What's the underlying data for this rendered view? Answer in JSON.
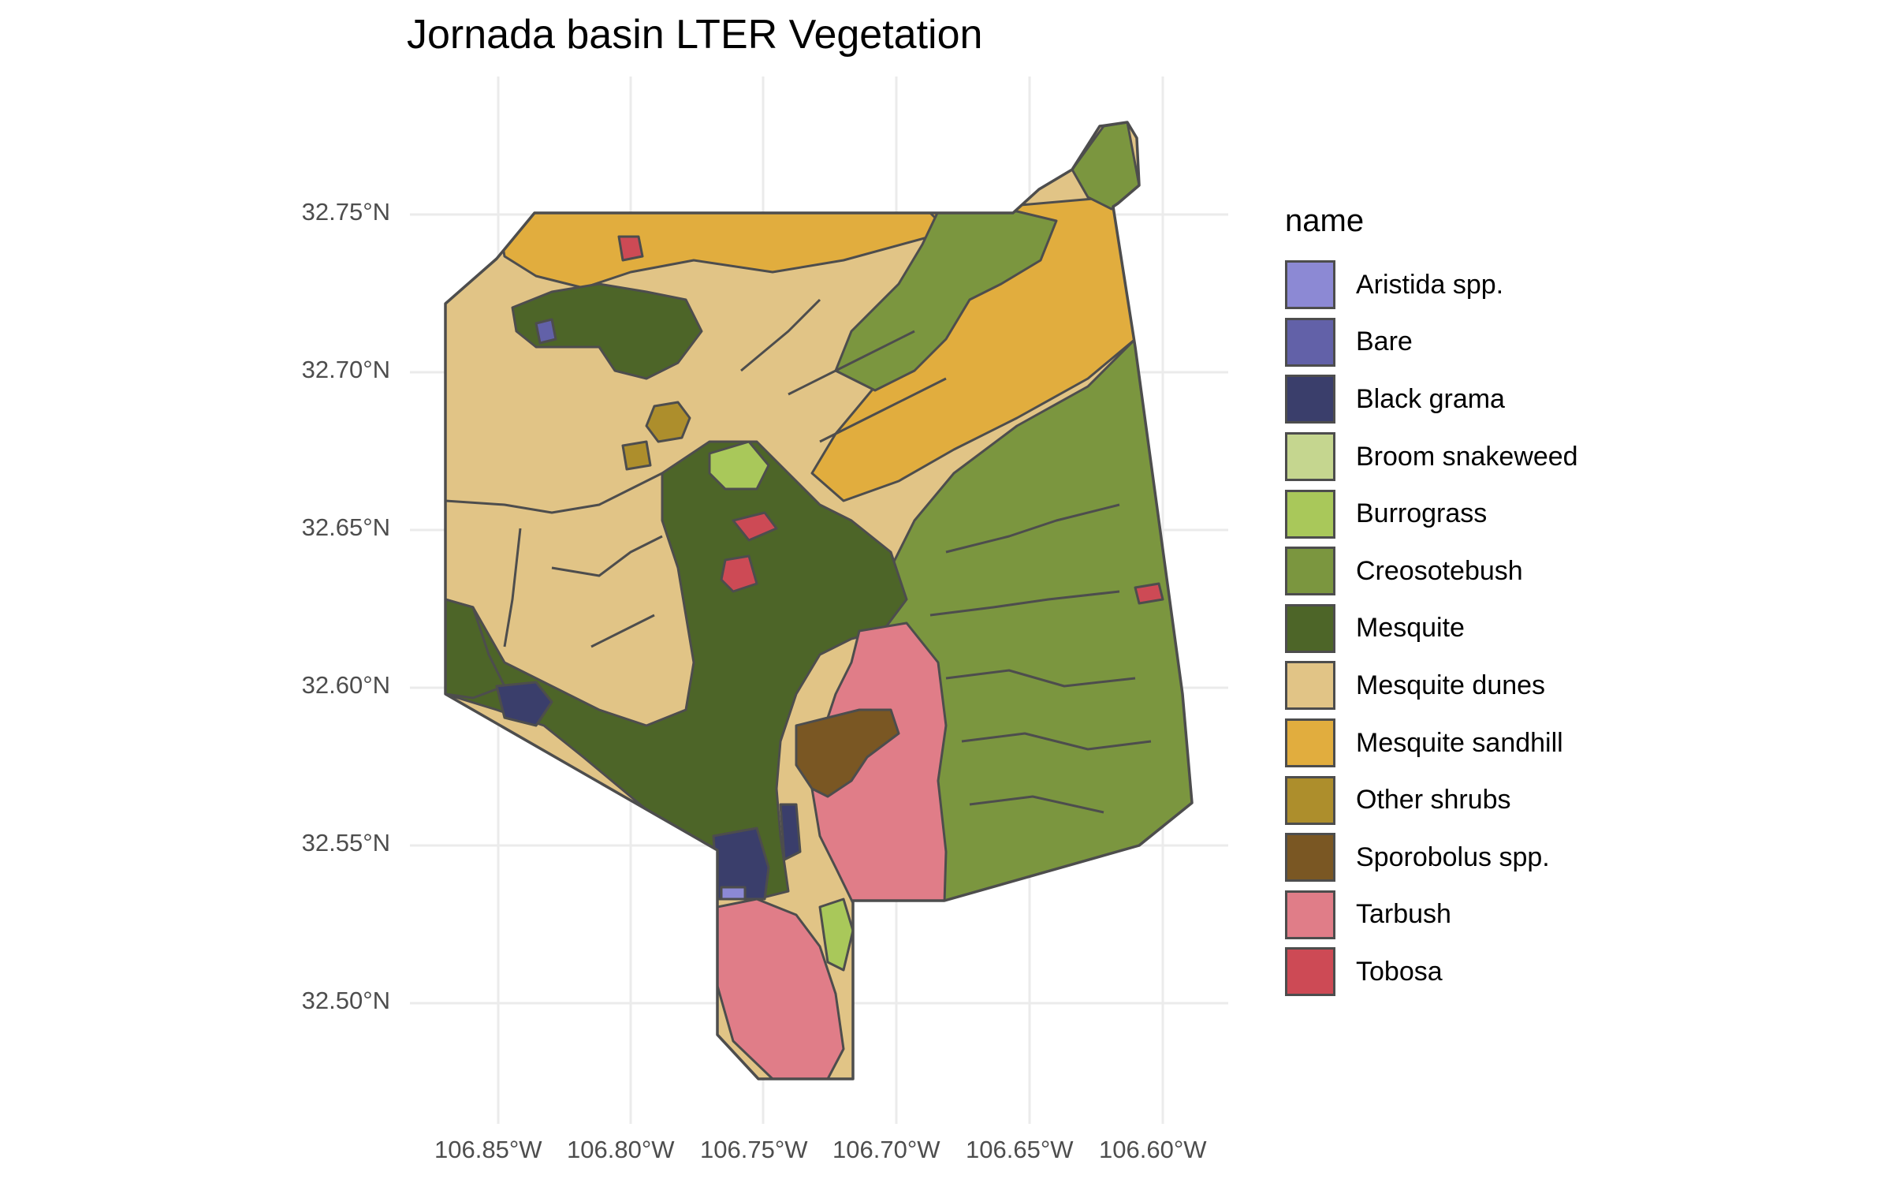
{
  "title": "Jornada basin LTER Vegetation",
  "axes": {
    "lat_ticks": [
      "32.75°N",
      "32.70°N",
      "32.65°N",
      "32.60°N",
      "32.55°N",
      "32.50°N"
    ],
    "lon_ticks": [
      "106.85°W",
      "106.80°W",
      "106.75°W",
      "106.70°W",
      "106.65°W",
      "106.60°W"
    ]
  },
  "legend": {
    "title": "name",
    "items": [
      {
        "label": "Aristida spp.",
        "color": "#8c89d4"
      },
      {
        "label": "Bare",
        "color": "#6261a8"
      },
      {
        "label": "Black grama",
        "color": "#3a3e6b"
      },
      {
        "label": "Broom snakeweed",
        "color": "#c5d68f"
      },
      {
        "label": "Burrograss",
        "color": "#a9c85a"
      },
      {
        "label": "Creosotebush",
        "color": "#7b963f"
      },
      {
        "label": "Mesquite",
        "color": "#4d6528"
      },
      {
        "label": "Mesquite dunes",
        "color": "#e1c486"
      },
      {
        "label": "Mesquite sandhill",
        "color": "#e1ad3e"
      },
      {
        "label": "Other shrubs",
        "color": "#ad8e2c"
      },
      {
        "label": "Sporobolus spp.",
        "color": "#7a5723"
      },
      {
        "label": "Tarbush",
        "color": "#e07d88"
      },
      {
        "label": "Tobosa",
        "color": "#cd4a55"
      }
    ]
  },
  "colors": {
    "outline": "#4d4d4d",
    "grid": "#ebebeb"
  }
}
